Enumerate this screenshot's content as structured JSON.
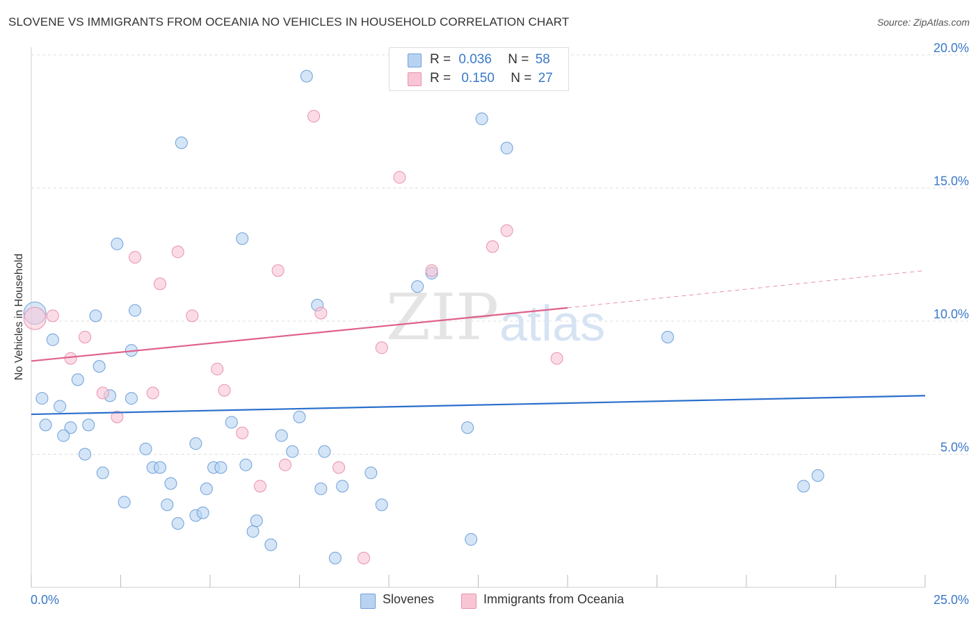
{
  "title": "SLOVENE VS IMMIGRANTS FROM OCEANIA NO VEHICLES IN HOUSEHOLD CORRELATION CHART",
  "source": "Source: ZipAtlas.com",
  "watermark": {
    "zip": "ZIP",
    "atlas": "atlas"
  },
  "legend_top": {
    "rows": [
      {
        "r_label": "R =",
        "r_value": "0.036",
        "n_label": "N =",
        "n_value": "58",
        "color": "#b8d3f2"
      },
      {
        "r_label": "R =",
        "r_value": "0.150",
        "n_label": "N =",
        "n_value": "27",
        "color": "#f9c5d5"
      }
    ]
  },
  "legend_bottom": [
    {
      "label": "Slovenes",
      "color": "#b8d3f2"
    },
    {
      "label": "Immigrants from Oceania",
      "color": "#f9c5d5"
    }
  ],
  "chart_data": {
    "type": "scatter",
    "title": "SLOVENE VS IMMIGRANTS FROM OCEANIA NO VEHICLES IN HOUSEHOLD CORRELATION CHART",
    "xlabel": "",
    "ylabel": "No Vehicles in Household",
    "xlim": [
      0,
      25
    ],
    "ylim": [
      0,
      20
    ],
    "x_tick_labels": [
      "0.0%",
      "25.0%"
    ],
    "y_ticks": [
      5,
      10,
      15,
      20
    ],
    "y_tick_labels": [
      "5.0%",
      "10.0%",
      "15.0%",
      "20.0%"
    ],
    "grid": true,
    "series": [
      {
        "name": "Slovenes",
        "color": "#b8d3f2",
        "stroke": "#6e9fd8",
        "trend_color": "#2a6fcc",
        "trend": {
          "x": [
            0,
            25
          ],
          "y": [
            6.5,
            7.2
          ]
        },
        "points": [
          [
            0.1,
            10.3
          ],
          [
            0.6,
            9.3
          ],
          [
            0.3,
            7.1
          ],
          [
            0.8,
            6.8
          ],
          [
            0.4,
            6.1
          ],
          [
            1.3,
            7.8
          ],
          [
            2.4,
            12.9
          ],
          [
            1.8,
            10.2
          ],
          [
            2.9,
            10.4
          ],
          [
            1.9,
            8.3
          ],
          [
            2.8,
            8.9
          ],
          [
            2.2,
            7.2
          ],
          [
            2.8,
            7.1
          ],
          [
            1.1,
            6.0
          ],
          [
            0.9,
            5.7
          ],
          [
            1.6,
            6.1
          ],
          [
            1.5,
            5.0
          ],
          [
            2.0,
            4.3
          ],
          [
            3.2,
            5.2
          ],
          [
            3.4,
            4.5
          ],
          [
            3.6,
            4.5
          ],
          [
            2.6,
            3.2
          ],
          [
            3.9,
            3.9
          ],
          [
            3.8,
            3.1
          ],
          [
            4.2,
            16.7
          ],
          [
            4.1,
            2.4
          ],
          [
            4.6,
            2.7
          ],
          [
            4.8,
            2.8
          ],
          [
            4.6,
            5.4
          ],
          [
            4.9,
            3.7
          ],
          [
            5.1,
            4.5
          ],
          [
            5.3,
            4.5
          ],
          [
            5.6,
            6.2
          ],
          [
            5.9,
            13.1
          ],
          [
            6.0,
            4.6
          ],
          [
            6.2,
            2.1
          ],
          [
            6.3,
            2.5
          ],
          [
            6.7,
            1.6
          ],
          [
            7.0,
            5.7
          ],
          [
            7.5,
            6.4
          ],
          [
            7.3,
            5.1
          ],
          [
            7.7,
            19.2
          ],
          [
            8.0,
            10.6
          ],
          [
            8.1,
            3.7
          ],
          [
            8.2,
            5.1
          ],
          [
            8.5,
            1.1
          ],
          [
            8.7,
            3.8
          ],
          [
            9.5,
            4.3
          ],
          [
            9.8,
            3.1
          ],
          [
            10.8,
            11.3
          ],
          [
            11.2,
            11.8
          ],
          [
            12.2,
            6.0
          ],
          [
            12.6,
            17.6
          ],
          [
            12.3,
            1.8
          ],
          [
            13.3,
            16.5
          ],
          [
            17.8,
            9.4
          ],
          [
            21.6,
            3.8
          ],
          [
            22.0,
            4.2
          ]
        ]
      },
      {
        "name": "Immigrants from Oceania",
        "color": "#f9c5d5",
        "stroke": "#e891ad",
        "trend_color": "#e0608a",
        "trend": {
          "x": [
            0,
            15
          ],
          "y": [
            8.5,
            10.5
          ]
        },
        "trend_dashed": {
          "x": [
            15,
            25
          ],
          "y": [
            10.5,
            11.9
          ]
        },
        "points": [
          [
            0.1,
            10.1
          ],
          [
            0.6,
            10.2
          ],
          [
            1.1,
            8.6
          ],
          [
            1.5,
            9.4
          ],
          [
            2.0,
            7.3
          ],
          [
            2.4,
            6.4
          ],
          [
            2.9,
            12.4
          ],
          [
            3.4,
            7.3
          ],
          [
            3.6,
            11.4
          ],
          [
            4.1,
            12.6
          ],
          [
            4.5,
            10.2
          ],
          [
            5.2,
            8.2
          ],
          [
            5.4,
            7.4
          ],
          [
            5.9,
            5.8
          ],
          [
            6.4,
            3.8
          ],
          [
            6.9,
            11.9
          ],
          [
            7.1,
            4.6
          ],
          [
            7.9,
            17.7
          ],
          [
            8.1,
            10.3
          ],
          [
            8.6,
            4.5
          ],
          [
            9.3,
            1.1
          ],
          [
            9.8,
            9.0
          ],
          [
            10.3,
            15.4
          ],
          [
            11.2,
            11.9
          ],
          [
            12.9,
            12.8
          ],
          [
            13.3,
            13.4
          ],
          [
            14.7,
            8.6
          ]
        ]
      }
    ]
  }
}
